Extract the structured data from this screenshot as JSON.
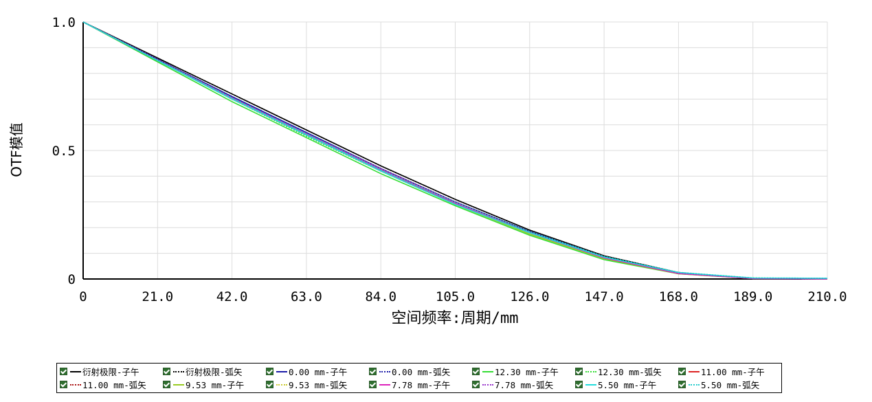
{
  "chart_data": {
    "type": "line",
    "title": "",
    "xlabel": "空间频率:周期/mm",
    "ylabel": "OTF模值",
    "xlim": [
      0,
      210
    ],
    "ylim": [
      0,
      1
    ],
    "x_ticks": [
      "0",
      "21.0",
      "42.0",
      "63.0",
      "84.0",
      "105.0",
      "126.0",
      "147.0",
      "168.0",
      "189.0",
      "210.0"
    ],
    "y_ticks": [
      "0",
      "0.5",
      "1.0"
    ],
    "grid": true,
    "legend_position": "bottom",
    "x": [
      0,
      21,
      42,
      63,
      84,
      105,
      126,
      147,
      168,
      189,
      210
    ],
    "series": [
      {
        "name": "衍射极限-子午",
        "color": "#000000",
        "dash": "solid",
        "values": [
          1.0,
          0.86,
          0.72,
          0.58,
          0.44,
          0.31,
          0.19,
          0.09,
          0.025,
          0.002,
          0.0
        ]
      },
      {
        "name": "衍射极限-弧矢",
        "color": "#000000",
        "dash": "dotted",
        "values": [
          1.0,
          0.86,
          0.72,
          0.58,
          0.44,
          0.31,
          0.19,
          0.09,
          0.025,
          0.002,
          0.0
        ]
      },
      {
        "name": "0.00 mm-子午",
        "color": "#1a1aa8",
        "dash": "solid",
        "values": [
          1.0,
          0.855,
          0.71,
          0.57,
          0.43,
          0.3,
          0.185,
          0.085,
          0.022,
          0.002,
          0.0
        ]
      },
      {
        "name": "0.00 mm-弧矢",
        "color": "#1a1aa8",
        "dash": "dotted",
        "values": [
          1.0,
          0.855,
          0.71,
          0.57,
          0.43,
          0.3,
          0.185,
          0.085,
          0.022,
          0.002,
          0.0
        ]
      },
      {
        "name": "12.30 mm-子午",
        "color": "#33dd33",
        "dash": "solid",
        "values": [
          1.0,
          0.845,
          0.69,
          0.55,
          0.41,
          0.285,
          0.17,
          0.075,
          0.02,
          0.003,
          0.0
        ]
      },
      {
        "name": "12.30 mm-弧矢",
        "color": "#33dd33",
        "dash": "dotted",
        "values": [
          1.0,
          0.85,
          0.7,
          0.555,
          0.42,
          0.29,
          0.18,
          0.085,
          0.025,
          0.004,
          0.0
        ]
      },
      {
        "name": "11.00 mm-子午",
        "color": "#dd2222",
        "dash": "solid",
        "values": [
          1.0,
          0.85,
          0.7,
          0.56,
          0.42,
          0.295,
          0.18,
          0.08,
          0.021,
          0.002,
          0.0
        ]
      },
      {
        "name": "11.00 mm-弧矢",
        "color": "#aa1111",
        "dash": "dotted",
        "values": [
          1.0,
          0.855,
          0.705,
          0.565,
          0.43,
          0.3,
          0.185,
          0.085,
          0.023,
          0.002,
          0.0
        ]
      },
      {
        "name": "9.53 mm-子午",
        "color": "#99cc22",
        "dash": "solid",
        "values": [
          1.0,
          0.85,
          0.7,
          0.56,
          0.42,
          0.29,
          0.175,
          0.08,
          0.02,
          0.002,
          0.0
        ]
      },
      {
        "name": "9.53 mm-弧矢",
        "color": "#cccc33",
        "dash": "dotted",
        "values": [
          1.0,
          0.855,
          0.705,
          0.565,
          0.43,
          0.3,
          0.185,
          0.085,
          0.023,
          0.002,
          0.0
        ]
      },
      {
        "name": "7.78 mm-子午",
        "color": "#dd22bb",
        "dash": "solid",
        "values": [
          1.0,
          0.85,
          0.705,
          0.565,
          0.425,
          0.295,
          0.18,
          0.082,
          0.021,
          0.002,
          0.0
        ]
      },
      {
        "name": "7.78 mm-弧矢",
        "color": "#9933cc",
        "dash": "dotted",
        "values": [
          1.0,
          0.855,
          0.705,
          0.565,
          0.43,
          0.3,
          0.185,
          0.086,
          0.023,
          0.002,
          0.0
        ]
      },
      {
        "name": "5.50 mm-子午",
        "color": "#22dddd",
        "dash": "solid",
        "values": [
          1.0,
          0.85,
          0.7,
          0.56,
          0.42,
          0.29,
          0.18,
          0.085,
          0.025,
          0.004,
          0.003
        ]
      },
      {
        "name": "5.50 mm-弧矢",
        "color": "#22cccc",
        "dash": "dotted",
        "values": [
          1.0,
          0.852,
          0.705,
          0.565,
          0.425,
          0.298,
          0.185,
          0.088,
          0.026,
          0.004,
          0.003
        ]
      }
    ]
  }
}
